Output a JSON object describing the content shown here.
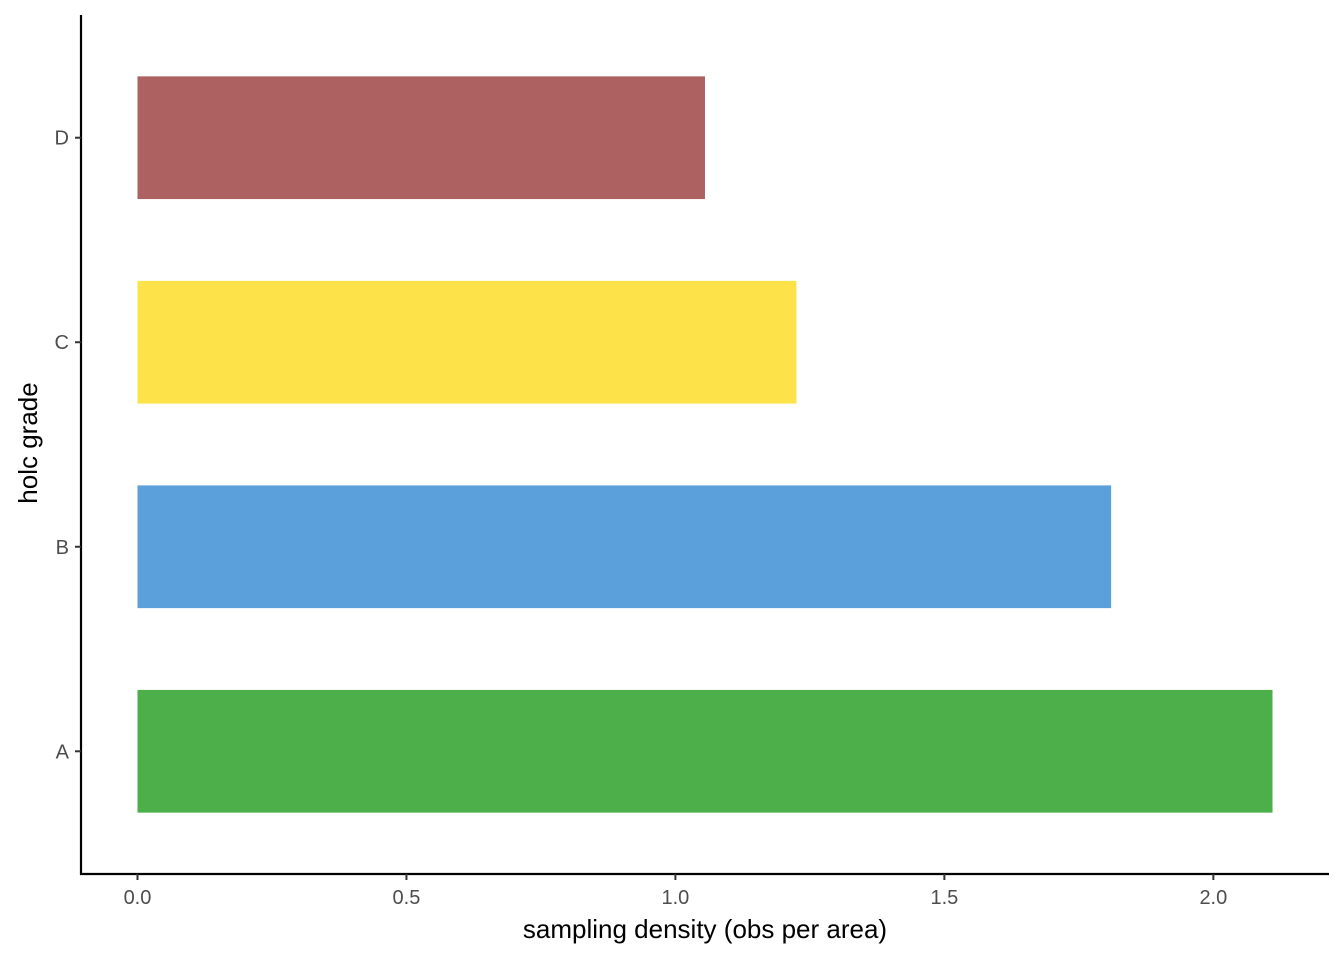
{
  "chart_data": {
    "type": "bar",
    "orientation": "horizontal",
    "categories": [
      "A",
      "B",
      "C",
      "D"
    ],
    "values": [
      2.11,
      1.81,
      1.225,
      1.055
    ],
    "colors": [
      "#4daf4a",
      "#5b9fdb",
      "#fde24a",
      "#ad6160"
    ],
    "xlabel": "sampling density (obs per area)",
    "ylabel": "holc grade",
    "xlim": [
      -0.105,
      2.215
    ],
    "xticks": [
      0.0,
      0.5,
      1.0,
      1.5,
      2.0
    ],
    "xtick_labels": [
      "0.0",
      "0.5",
      "1.0",
      "1.5",
      "2.0"
    ],
    "grid": false,
    "legend": "none"
  }
}
